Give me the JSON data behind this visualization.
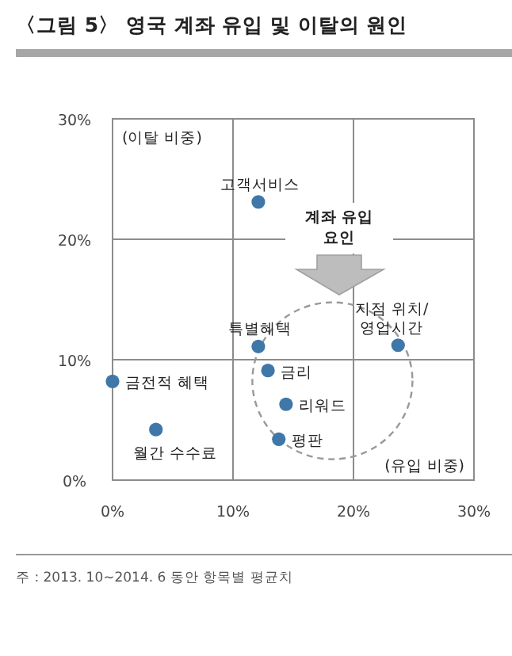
{
  "chart_data": {
    "type": "scatter",
    "title": "〈그림 5〉 영국 계좌 유입 및 이탈의 원인",
    "xlabel": "(유입 비중)",
    "ylabel": "(이탈 비중)",
    "series": [
      {
        "name": "고객서비스",
        "color": "#3f77a8",
        "x": [
          12.1
        ],
        "values": [
          23.1
        ]
      },
      {
        "name": "특별혜택",
        "color": "#3f77a8",
        "x": [
          12.1
        ],
        "values": [
          11.1
        ]
      },
      {
        "name": "금리",
        "color": "#3f77a8",
        "x": [
          12.9
        ],
        "values": [
          9.1
        ]
      },
      {
        "name": "리워드",
        "color": "#3f77a8",
        "x": [
          14.4
        ],
        "values": [
          6.3
        ]
      },
      {
        "name": "평판",
        "color": "#3f77a8",
        "x": [
          13.8
        ],
        "values": [
          3.4
        ]
      },
      {
        "name": "금전적 혜택",
        "color": "#3f77a8",
        "x": [
          0
        ],
        "values": [
          8.2
        ]
      },
      {
        "name": "월간 수수료",
        "color": "#3f77a8",
        "x": [
          3.6
        ],
        "values": [
          4.2
        ]
      },
      {
        "name": "지점 위치/영업시간",
        "color": "#3f77a8",
        "x": [
          23.7
        ],
        "values": [
          11.2
        ]
      }
    ],
    "xlim": [
      0,
      30
    ],
    "ylim": [
      0,
      30
    ],
    "xticks": [
      {
        "value": 0,
        "label": "0%"
      },
      {
        "value": 10,
        "label": "10%"
      },
      {
        "value": 20,
        "label": "20%"
      },
      {
        "value": 30,
        "label": "30%"
      }
    ],
    "yticks": [
      {
        "value": 0,
        "label": "0%"
      },
      {
        "value": 10,
        "label": "10%"
      },
      {
        "value": 20,
        "label": "20%"
      },
      {
        "value": 30,
        "label": "30%"
      }
    ],
    "grid": true,
    "marker": "circle",
    "annotations": [
      "계좌 유입 요인",
      "주 : 2013. 10~2014. 6 동안 항목별 평균치"
    ]
  }
}
